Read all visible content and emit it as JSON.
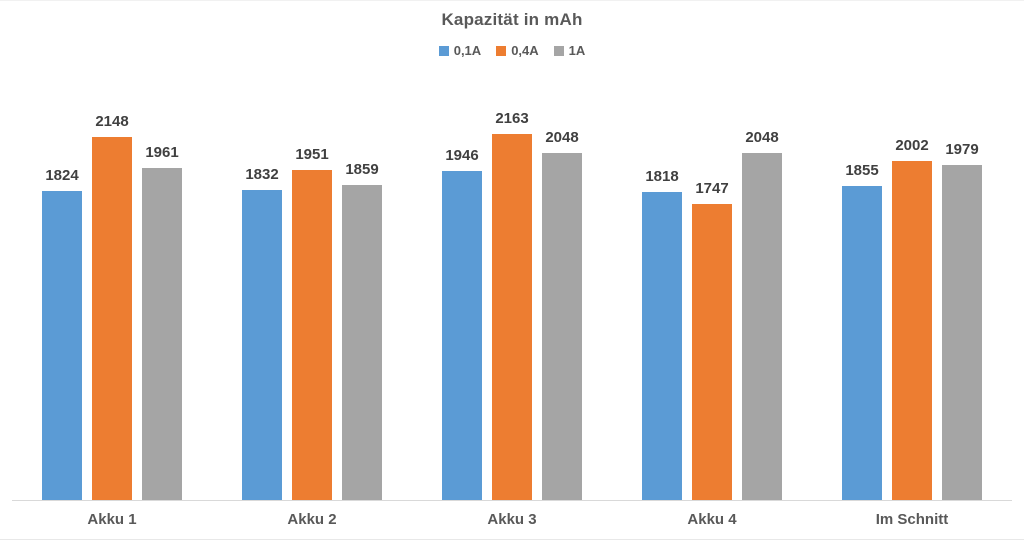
{
  "chart_data": {
    "type": "bar",
    "title": "Kapazität in mAh",
    "categories": [
      "Akku 1",
      "Akku 2",
      "Akku 3",
      "Akku 4",
      "Im Schnitt"
    ],
    "series": [
      {
        "name": "0,1A",
        "color": "#5B9BD5",
        "values": [
          1824,
          1832,
          1946,
          1818,
          1855
        ]
      },
      {
        "name": "0,4A",
        "color": "#ED7D31",
        "values": [
          2148,
          1951,
          2163,
          1747,
          2002
        ]
      },
      {
        "name": "1A",
        "color": "#A5A5A5",
        "values": [
          1961,
          1859,
          2048,
          2048,
          1979
        ]
      }
    ],
    "xlabel": "",
    "ylabel": "",
    "ylim": [
      0,
      2553
    ],
    "value_labels": true,
    "legend_position": "top-center",
    "grid": false,
    "y_axis_visible": false,
    "axis_line_color": "#D9D9D9",
    "title_color": "#595959",
    "value_label_color": "#404040",
    "category_label_color": "#595959"
  }
}
